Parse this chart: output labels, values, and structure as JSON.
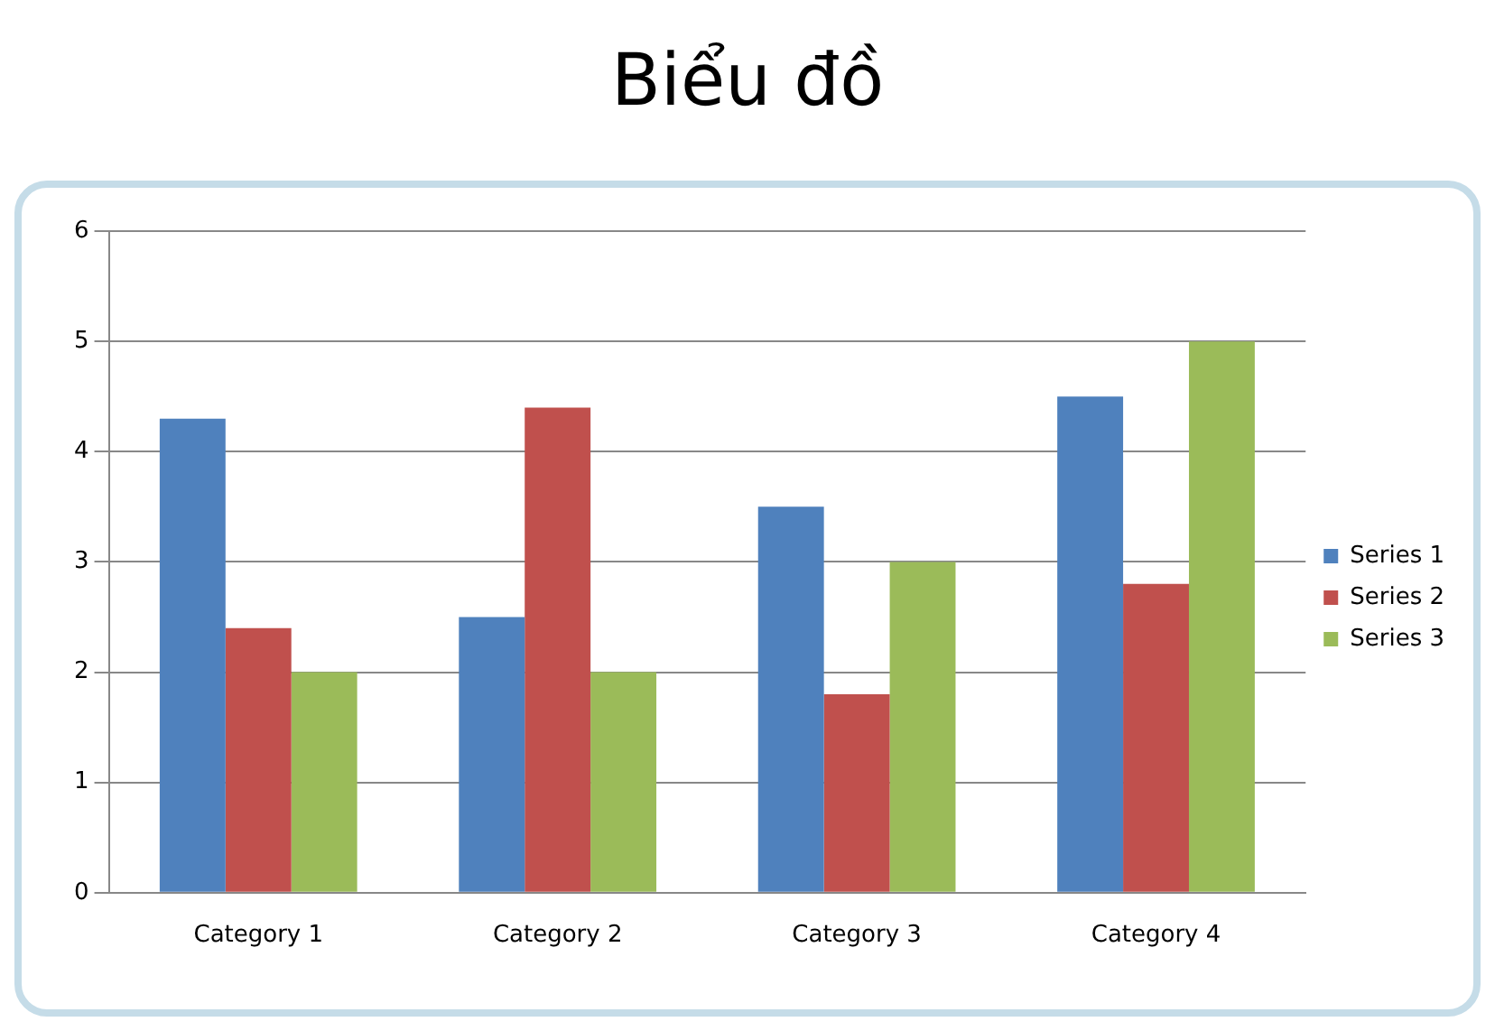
{
  "chart_data": {
    "type": "bar",
    "title": "Biểu đồ",
    "categories": [
      "Category 1",
      "Category 2",
      "Category 3",
      "Category 4"
    ],
    "series": [
      {
        "name": "Series 1",
        "color": "#4f81bd",
        "values": [
          4.3,
          2.5,
          3.5,
          4.5
        ]
      },
      {
        "name": "Series 2",
        "color": "#c0504d",
        "values": [
          2.4,
          4.4,
          1.8,
          2.8
        ]
      },
      {
        "name": "Series 3",
        "color": "#9bbb59",
        "values": [
          2,
          2,
          3,
          5
        ]
      }
    ],
    "ylim": [
      0,
      6
    ],
    "yticks": [
      0,
      1,
      2,
      3,
      4,
      5,
      6
    ],
    "grid": "y",
    "legend": "right"
  }
}
